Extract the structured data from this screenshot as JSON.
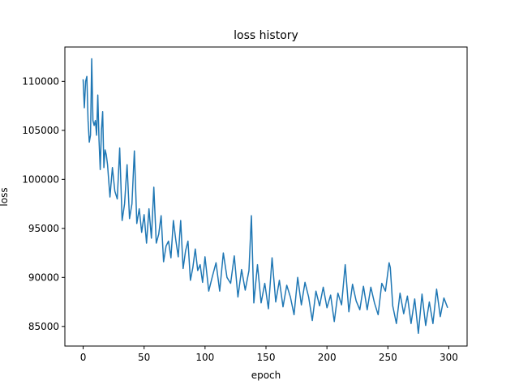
{
  "chart_data": {
    "type": "line",
    "title": "loss history",
    "xlabel": "epoch",
    "ylabel": "loss",
    "xlim": [
      -15,
      315
    ],
    "ylim": [
      83000,
      113500
    ],
    "xticks": [
      0,
      50,
      100,
      150,
      200,
      250,
      300
    ],
    "xtick_labels": [
      "0",
      "50",
      "100",
      "150",
      "200",
      "250",
      "300"
    ],
    "yticks": [
      85000,
      90000,
      95000,
      100000,
      105000,
      110000
    ],
    "ytick_labels": [
      "85000",
      "90000",
      "95000",
      "100000",
      "105000",
      "110000"
    ],
    "grid": false,
    "series": [
      {
        "color": "#1f77b4",
        "x": [
          0,
          1,
          2,
          3,
          4,
          5,
          6,
          7,
          8,
          9,
          10,
          11,
          12,
          13,
          14,
          15,
          16,
          17,
          18,
          19,
          20,
          22,
          24,
          26,
          28,
          30,
          32,
          34,
          36,
          38,
          40,
          42,
          44,
          46,
          48,
          50,
          52,
          54,
          56,
          58,
          60,
          62,
          64,
          66,
          68,
          70,
          72,
          74,
          76,
          78,
          80,
          82,
          84,
          86,
          88,
          90,
          92,
          94,
          96,
          98,
          100,
          103,
          106,
          109,
          112,
          115,
          118,
          121,
          124,
          127,
          130,
          133,
          136,
          138,
          140,
          143,
          146,
          149,
          152,
          155,
          158,
          161,
          164,
          167,
          170,
          173,
          176,
          179,
          182,
          185,
          188,
          191,
          194,
          197,
          200,
          203,
          206,
          209,
          212,
          215,
          218,
          221,
          224,
          227,
          230,
          233,
          236,
          239,
          242,
          245,
          248,
          251,
          252,
          254,
          257,
          260,
          263,
          266,
          269,
          272,
          275,
          278,
          281,
          284,
          287,
          290,
          293,
          296,
          299
        ],
        "y": [
          110200,
          107300,
          110000,
          110500,
          106000,
          103800,
          104500,
          112300,
          106000,
          105500,
          106000,
          104500,
          108600,
          104000,
          101000,
          105000,
          106900,
          101200,
          103000,
          102500,
          101500,
          98200,
          101200,
          98800,
          98000,
          103200,
          95800,
          97500,
          101500,
          96000,
          97500,
          102900,
          95500,
          97000,
          94600,
          96400,
          93500,
          97000,
          94000,
          99200,
          93500,
          94400,
          96300,
          91600,
          93200,
          93700,
          92000,
          95800,
          93800,
          92100,
          95800,
          90900,
          92700,
          93700,
          89700,
          91000,
          92900,
          90700,
          91300,
          89500,
          92100,
          88600,
          90100,
          91500,
          88600,
          92500,
          90000,
          89400,
          92200,
          88000,
          90800,
          88700,
          90700,
          96300,
          87400,
          91300,
          87400,
          89400,
          86800,
          92000,
          87500,
          89700,
          87000,
          89200,
          88000,
          86200,
          90000,
          87200,
          89500,
          88000,
          85600,
          88600,
          87100,
          89000,
          86900,
          88200,
          85500,
          88400,
          87200,
          91300,
          86500,
          89300,
          87600,
          86700,
          89100,
          86700,
          89000,
          87400,
          86200,
          89400,
          88600,
          91500,
          91000,
          87100,
          85300,
          88400,
          86300,
          88100,
          85300,
          87800,
          84300,
          88300,
          85100,
          87500,
          85300,
          88800,
          86000,
          87900,
          86900
        ]
      }
    ]
  }
}
